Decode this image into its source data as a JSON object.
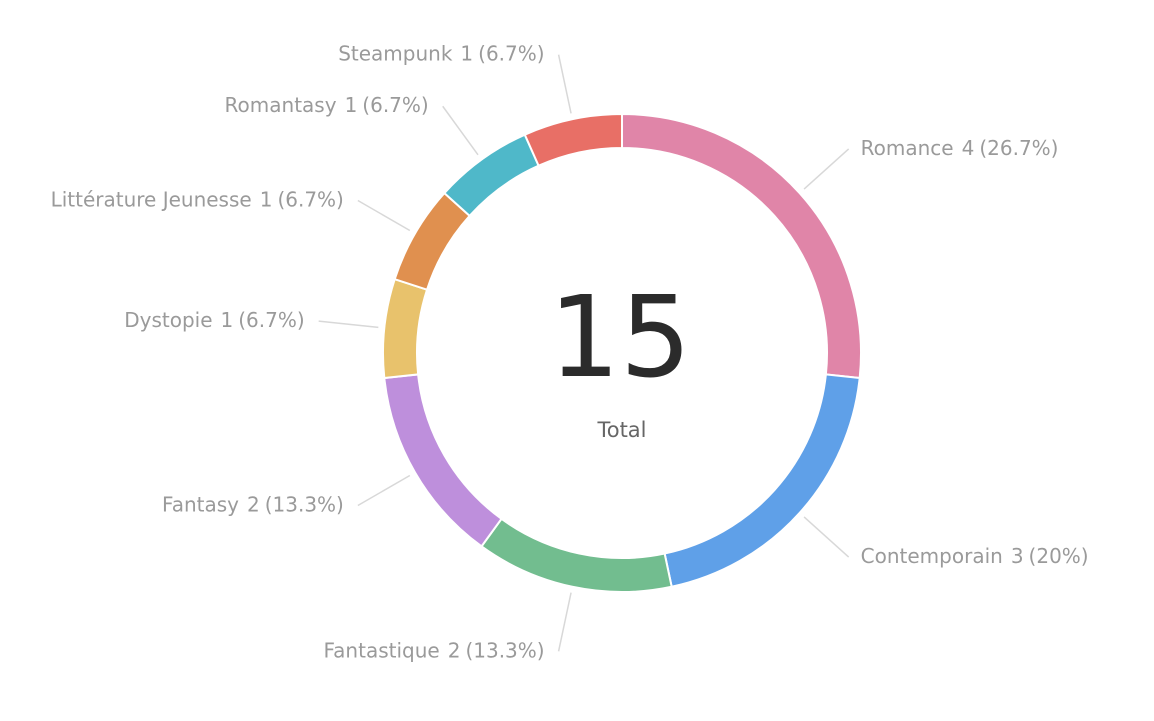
{
  "chart_data": {
    "type": "donut",
    "categories": [
      "Romance",
      "Contemporain",
      "Fantastique",
      "Fantasy",
      "Dystopie",
      "Littérature Jeunesse",
      "Romantasy",
      "Steampunk"
    ],
    "values": [
      4,
      3,
      2,
      2,
      1,
      1,
      1,
      1
    ],
    "percent_labels": [
      "(26.7%)",
      "(20%)",
      "(13.3%)",
      "(13.3%)",
      "(6.7%)",
      "(6.7%)",
      "(6.7%)",
      "(6.7%)"
    ],
    "colors": [
      "#e085a8",
      "#5fa0e8",
      "#72bd8f",
      "#be8fdc",
      "#e8c26c",
      "#e0904f",
      "#4fb8c9",
      "#e86f66"
    ],
    "total": 15,
    "total_label": "Total"
  }
}
